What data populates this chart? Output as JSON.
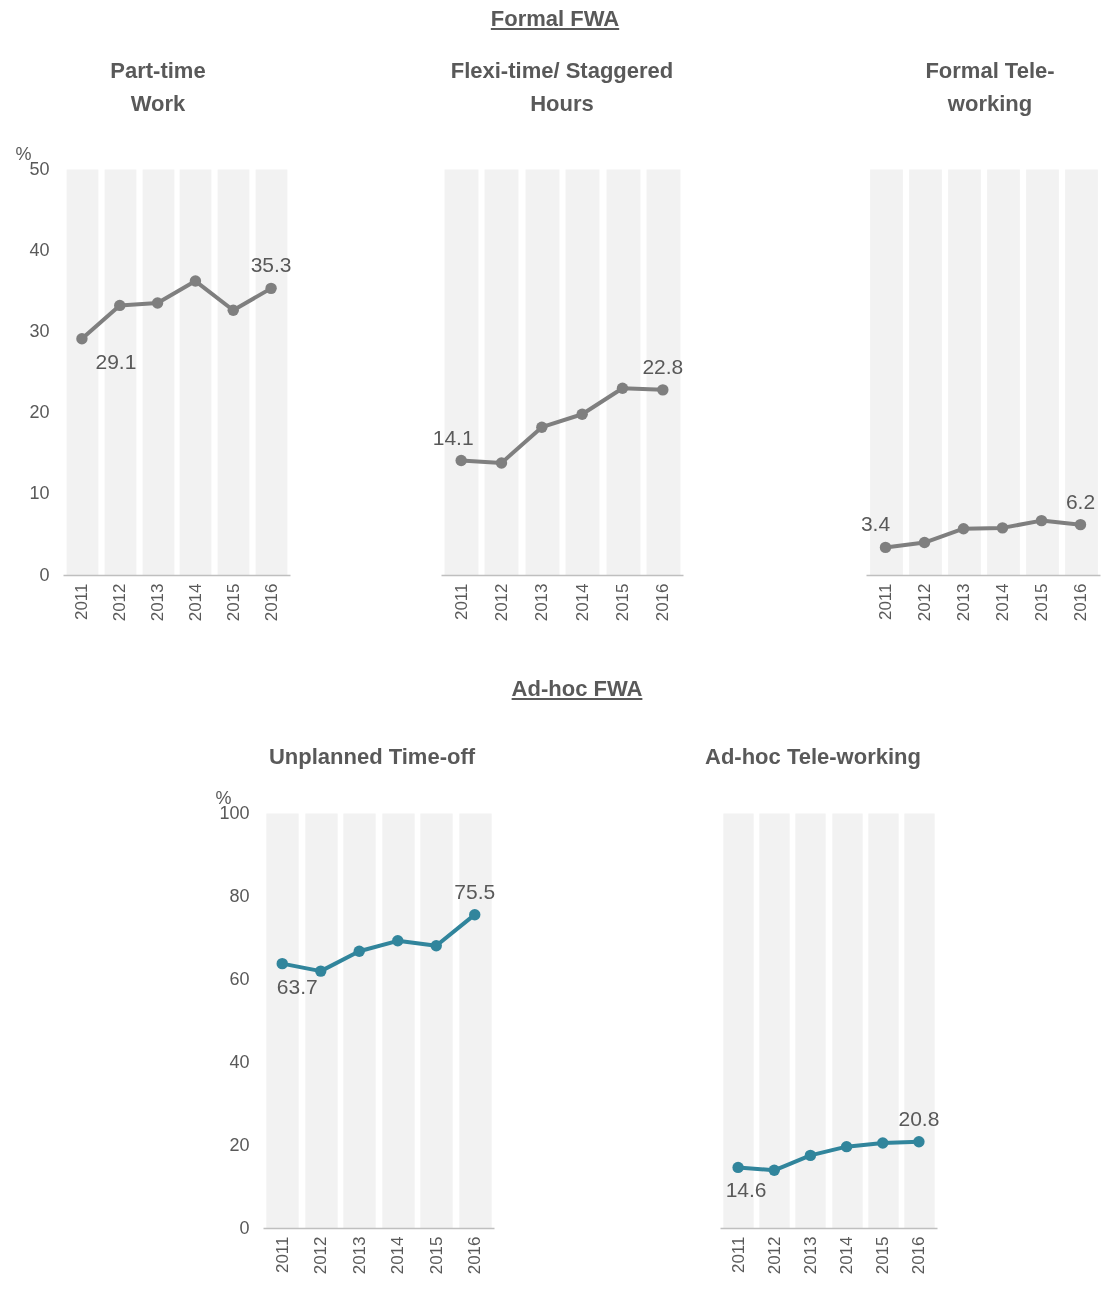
{
  "chart_data": [
    {
      "type": "line",
      "title": "Part-time Work",
      "ylabel": "%",
      "annotations": [
        "Formal FWA"
      ],
      "categories": [
        "2011",
        "2012",
        "2013",
        "2014",
        "2015",
        "2016"
      ],
      "values": [
        29.1,
        33.2,
        33.5,
        36.2,
        32.6,
        35.3
      ],
      "value_labels": [
        "29.1",
        null,
        null,
        null,
        null,
        "35.3"
      ],
      "color": "#7f7f7f",
      "ylim": [
        0,
        50
      ],
      "yticks": [
        0,
        10,
        20,
        30,
        40,
        50
      ],
      "grid": "x",
      "marker": "circle",
      "line_style": "solid"
    },
    {
      "type": "line",
      "title": "Flexi-time/ Staggered Hours",
      "categories": [
        "2011",
        "2012",
        "2013",
        "2014",
        "2015",
        "2016"
      ],
      "values": [
        14.1,
        13.8,
        18.2,
        19.8,
        23.0,
        22.8
      ],
      "value_labels": [
        "14.1",
        null,
        null,
        null,
        null,
        "22.8"
      ],
      "color": "#7f7f7f",
      "ylim": [
        0,
        50
      ],
      "tick_labels": "x",
      "grid": "x",
      "marker": "circle",
      "line_style": "solid"
    },
    {
      "type": "line",
      "title": "Formal Tele-working",
      "categories": [
        "2011",
        "2012",
        "2013",
        "2014",
        "2015",
        "2016"
      ],
      "values": [
        3.4,
        4.0,
        5.7,
        5.8,
        6.7,
        6.2
      ],
      "value_labels": [
        "3.4",
        null,
        null,
        null,
        null,
        "6.2"
      ],
      "color": "#7f7f7f",
      "ylim": [
        0,
        50
      ],
      "tick_labels": "x",
      "grid": "x",
      "marker": "circle",
      "line_style": "solid"
    },
    {
      "type": "line",
      "title": "Unplanned Time-off",
      "ylabel": "%",
      "annotations": [
        "Ad-hoc FWA"
      ],
      "categories": [
        "2011",
        "2012",
        "2013",
        "2014",
        "2015",
        "2016"
      ],
      "values": [
        63.7,
        61.9,
        66.7,
        69.2,
        68.0,
        75.5
      ],
      "value_labels": [
        "63.7",
        null,
        null,
        null,
        null,
        "75.5"
      ],
      "color": "#31859c",
      "ylim": [
        0,
        100
      ],
      "yticks": [
        0,
        20,
        40,
        60,
        80,
        100
      ],
      "grid": "x",
      "marker": "circle",
      "line_style": "solid"
    },
    {
      "type": "line",
      "title": "Ad-hoc Tele-working",
      "categories": [
        "2011",
        "2012",
        "2013",
        "2014",
        "2015",
        "2016"
      ],
      "values": [
        14.6,
        13.9,
        17.5,
        19.6,
        20.5,
        20.8
      ],
      "value_labels": [
        "14.6",
        null,
        null,
        null,
        null,
        "20.8"
      ],
      "color": "#31859c",
      "ylim": [
        0,
        100
      ],
      "tick_labels": "x",
      "grid": "x",
      "marker": "circle",
      "line_style": "solid"
    }
  ]
}
